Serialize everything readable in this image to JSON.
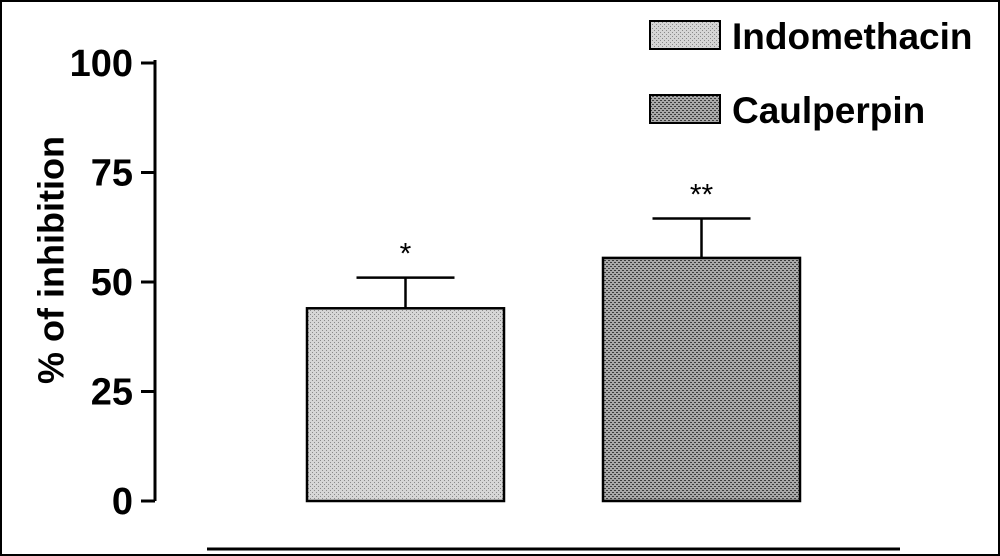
{
  "chart_data": {
    "type": "bar",
    "categories": [
      "Indomethacin",
      "Caulperpin"
    ],
    "values": [
      44,
      55.5
    ],
    "errors": [
      7,
      9
    ],
    "annotations": [
      "*",
      "**"
    ],
    "ylabel": "% of inhibition",
    "xlabel": "",
    "ylim": [
      0,
      100
    ],
    "yticks": [
      0,
      25,
      50,
      75,
      100
    ],
    "ytick_labels": [
      "0",
      "25",
      "50",
      "75",
      "100"
    ],
    "legend": {
      "position": "top-right",
      "entries": [
        "Indomethacin",
        "Caulperpin"
      ]
    },
    "grid": false
  }
}
